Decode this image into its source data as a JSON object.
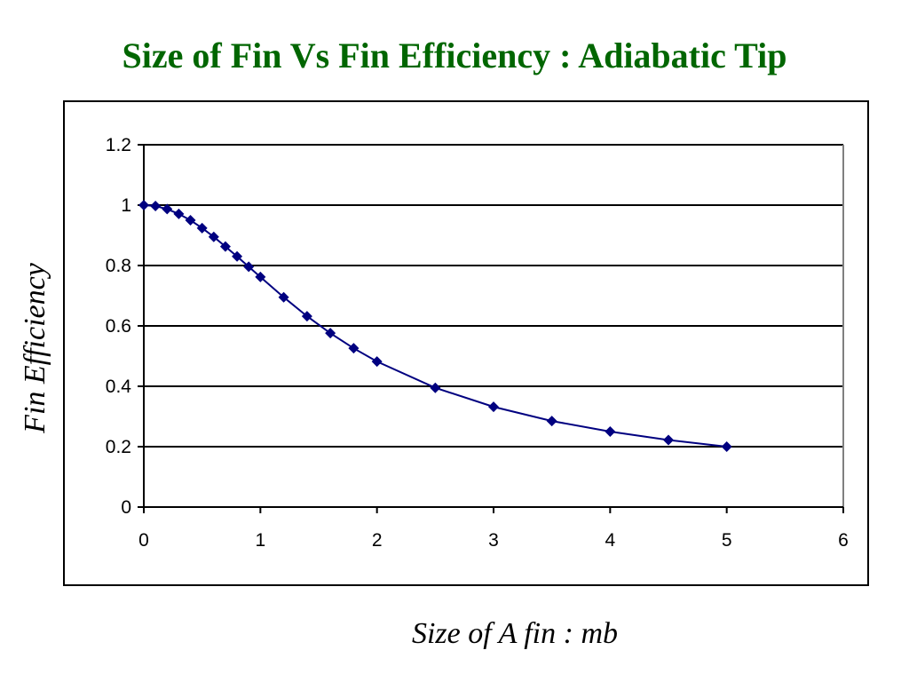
{
  "slide": {
    "title": "Size of Fin Vs Fin Efficiency : Adiabatic Tip",
    "title_color": "#006600"
  },
  "chart_data": {
    "type": "scatter",
    "mode": "line+markers",
    "title": "Size of Fin Vs Fin Efficiency : Adiabatic Tip",
    "xlabel": "Size of A fin : mb",
    "ylabel": "Fin Efficiency",
    "xlim": [
      0,
      6
    ],
    "ylim": [
      0,
      1.2
    ],
    "xticks": [
      0,
      1,
      2,
      3,
      4,
      5,
      6
    ],
    "yticks": [
      0,
      0.2,
      0.4,
      0.6,
      0.8,
      1,
      1.2
    ],
    "ytick_labels": [
      "0",
      "0.2",
      "0.4",
      "0.6",
      "0.8",
      "1",
      "1.2"
    ],
    "grid": "horizontal",
    "legend": "none",
    "series_color": "#000080",
    "series": [
      {
        "x": [
          0,
          0.1,
          0.2,
          0.3,
          0.4,
          0.5,
          0.6,
          0.7,
          0.8,
          0.9,
          1.0,
          1.2,
          1.4,
          1.6,
          1.8,
          2.0,
          2.5,
          3.0,
          3.5,
          4.0,
          4.5,
          5.0
        ],
        "y": [
          1.0,
          0.997,
          0.987,
          0.971,
          0.95,
          0.924,
          0.895,
          0.863,
          0.83,
          0.796,
          0.762,
          0.695,
          0.632,
          0.576,
          0.526,
          0.482,
          0.395,
          0.332,
          0.285,
          0.25,
          0.222,
          0.2
        ]
      }
    ]
  }
}
